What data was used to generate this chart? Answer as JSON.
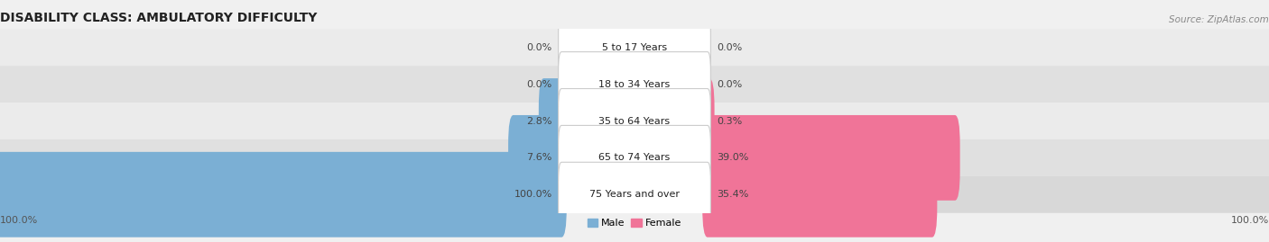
{
  "title": "DISABILITY CLASS: AMBULATORY DIFFICULTY",
  "source": "Source: ZipAtlas.com",
  "categories": [
    "5 to 17 Years",
    "18 to 34 Years",
    "35 to 64 Years",
    "65 to 74 Years",
    "75 Years and over"
  ],
  "male_values": [
    0.0,
    0.0,
    2.8,
    7.6,
    100.0
  ],
  "female_values": [
    0.0,
    0.0,
    0.3,
    39.0,
    35.4
  ],
  "male_color": "#7bafd4",
  "female_color": "#f07498",
  "row_bg_colors": [
    "#ebebeb",
    "#e0e0e0",
    "#ebebeb",
    "#e0e0e0",
    "#d8d8d8"
  ],
  "max_value": 100.0,
  "x_left_label": "100.0%",
  "x_right_label": "100.0%",
  "title_fontsize": 10,
  "label_fontsize": 8,
  "source_fontsize": 7.5
}
